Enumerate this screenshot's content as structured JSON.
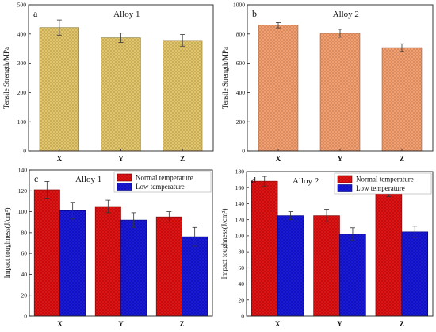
{
  "chart_data": [
    {
      "panel": "a",
      "title": "Alloy 1",
      "type": "bar",
      "ylabel": "Tensile Strength/MPa",
      "ylim": [
        0,
        500
      ],
      "yticks": [
        0,
        100,
        200,
        300,
        400,
        500
      ],
      "categories": [
        "X",
        "Y",
        "Z"
      ],
      "series": [
        {
          "values": [
            422,
            387,
            378
          ],
          "errors": [
            26,
            16,
            20
          ],
          "color": "#e3c56a",
          "edge": "#8a7a3a"
        }
      ]
    },
    {
      "panel": "b",
      "title": "Alloy 2",
      "type": "bar",
      "ylabel": "Tensile Strength/MPa",
      "ylim": [
        0,
        1000
      ],
      "yticks": [
        0,
        200,
        400,
        600,
        800,
        1000
      ],
      "categories": [
        "X",
        "Y",
        "Z"
      ],
      "series": [
        {
          "values": [
            860,
            805,
            706
          ],
          "errors": [
            18,
            27,
            26
          ],
          "color": "#f2a070",
          "edge": "#9a5a3a"
        }
      ]
    },
    {
      "panel": "c",
      "title": "Alloy 1",
      "type": "bar",
      "ylabel": "Impact toughness(J/cm²)",
      "ylim": [
        0,
        140
      ],
      "yticks": [
        0,
        20,
        40,
        60,
        80,
        100,
        120,
        140
      ],
      "categories": [
        "X",
        "Y",
        "Z"
      ],
      "legend": "top-right",
      "series": [
        {
          "name": "Normal temperature",
          "values": [
            121,
            105,
            95
          ],
          "errors": [
            8,
            6,
            5
          ],
          "color": "#e01414",
          "edge": "#7a0000"
        },
        {
          "name": "Low temperature",
          "values": [
            101,
            92,
            76
          ],
          "errors": [
            8,
            7,
            9
          ],
          "color": "#1a1ad8",
          "edge": "#00007a"
        }
      ]
    },
    {
      "panel": "d",
      "title": "Alloy 2",
      "type": "bar",
      "ylabel": "Impact toughness(J/cm²)",
      "ylim": [
        0,
        180
      ],
      "yticks": [
        0,
        20,
        40,
        60,
        80,
        100,
        120,
        140,
        160,
        180
      ],
      "categories": [
        "X",
        "Y",
        "Z"
      ],
      "legend": "top-right",
      "series": [
        {
          "name": "Normal temperature",
          "values": [
            168,
            125,
            154
          ],
          "errors": [
            6,
            8,
            5
          ],
          "color": "#e01414",
          "edge": "#7a0000"
        },
        {
          "name": "Low temperature",
          "values": [
            125,
            102,
            105
          ],
          "errors": [
            5,
            8,
            7
          ],
          "color": "#1a1ad8",
          "edge": "#00007a"
        }
      ]
    }
  ]
}
